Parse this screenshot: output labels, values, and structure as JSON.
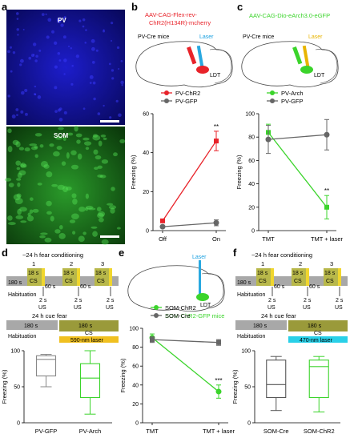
{
  "panels": {
    "a": {
      "letter": "a",
      "top_label": "PV",
      "bottom_label": "SOM"
    },
    "b": {
      "letter": "b",
      "virus_line1": "AAV-CAG-Flex-rev-",
      "virus_line2": "ChR2(H134R)-mcherry",
      "mouse": "PV-Cre mice",
      "laser": "Laser",
      "region": "LDT"
    },
    "c": {
      "letter": "c",
      "virus": "AAV-CAG-Dio-eArch3.0-eGFP",
      "mouse": "PV-Cre mice",
      "laser": "Laser",
      "region": "LDT"
    },
    "d": {
      "letter": "d",
      "protocol_title": "~24 h fear conditioning",
      "cue_title": "24 h cue fear",
      "habituation": "Habituation",
      "cs": "CS",
      "laser_label": "590-nm laser",
      "t180": "180 s",
      "t18": "18 s",
      "t60": "60 s",
      "us": "US",
      "t2": "2 s",
      "n1": "1",
      "n2": "2",
      "n3": "3"
    },
    "e": {
      "letter": "e",
      "laser": "Laser",
      "region": "LDT",
      "mouse": "SOM-ChR2-GFP mice"
    },
    "f": {
      "letter": "f",
      "protocol_title": "~24 h fear conditioning",
      "cue_title": "24 h cue fear",
      "habituation": "Habituation",
      "cs": "CS",
      "laser_label": "470-nm laser",
      "t180": "180 s",
      "t18": "18 s",
      "t60": "60 s",
      "us": "US",
      "t2": "2 s",
      "n1": "1",
      "n2": "2",
      "n3": "3"
    }
  },
  "colors": {
    "chr2": "#e8232a",
    "arch": "#3bd42b",
    "gfp": "#666666",
    "yellow": "#f0d62e",
    "olive": "#9a9a3a",
    "cyan": "#29d0e8",
    "pv_blue": "#1a1ad0",
    "som_green": "#2fb52f"
  },
  "chart_data": [
    {
      "id": "b",
      "type": "line",
      "ylabel": "Freezing (%)",
      "ylim": [
        0,
        60
      ],
      "yticks": [
        0,
        20,
        40,
        60
      ],
      "categories": [
        "Off",
        "On"
      ],
      "series": [
        {
          "name": "PV-ChR2",
          "values": [
            5,
            46
          ],
          "err": [
            0,
            5
          ]
        },
        {
          "name": "PV-GFP",
          "values": [
            2,
            4
          ],
          "err": [
            0,
            1.5
          ]
        }
      ],
      "annotations": [
        "**"
      ]
    },
    {
      "id": "c",
      "type": "line",
      "ylabel": "Freezing (%)",
      "ylim": [
        0,
        100
      ],
      "yticks": [
        0,
        20,
        40,
        60,
        80,
        100
      ],
      "categories": [
        "TMT",
        "TMT + laser"
      ],
      "series": [
        {
          "name": "PV-Arch",
          "values": [
            84,
            20
          ],
          "err": [
            7,
            10
          ]
        },
        {
          "name": "PV-GFP",
          "values": [
            78,
            82
          ],
          "err": [
            12,
            13
          ]
        }
      ],
      "annotations": [
        "**"
      ]
    },
    {
      "id": "d",
      "type": "box",
      "ylabel": "Freezing (%)",
      "ylim": [
        0,
        100
      ],
      "yticks": [
        0,
        50,
        100
      ],
      "categories": [
        "PV-GFP",
        "PV-Arch"
      ],
      "boxes": [
        {
          "min": 50,
          "q1": 65,
          "median": 88,
          "q3": 93,
          "max": 95
        },
        {
          "min": 12,
          "q1": 35,
          "median": 62,
          "q3": 82,
          "max": 100
        }
      ]
    },
    {
      "id": "e",
      "type": "line",
      "ylabel": "Freezing (%)",
      "ylim": [
        0,
        100
      ],
      "yticks": [
        0,
        20,
        40,
        60,
        80,
        100
      ],
      "categories": [
        "TMT",
        "TMT + laser"
      ],
      "series": [
        {
          "name": "SOM-ChR2",
          "values": [
            90,
            33
          ],
          "err": [
            4,
            7
          ]
        },
        {
          "name": "SOM-Cre",
          "values": [
            88,
            85
          ],
          "err": [
            3,
            3
          ]
        }
      ],
      "annotations": [
        "***"
      ]
    },
    {
      "id": "f",
      "type": "box",
      "ylabel": "Freezing (%)",
      "ylim": [
        0,
        100
      ],
      "yticks": [
        0,
        50,
        100
      ],
      "categories": [
        "SOM-Cre",
        "SOM-ChR2"
      ],
      "boxes": [
        {
          "min": 17,
          "q1": 35,
          "median": 53,
          "q3": 87,
          "max": 92
        },
        {
          "min": 15,
          "q1": 35,
          "median": 78,
          "q3": 87,
          "max": 92
        }
      ]
    }
  ]
}
